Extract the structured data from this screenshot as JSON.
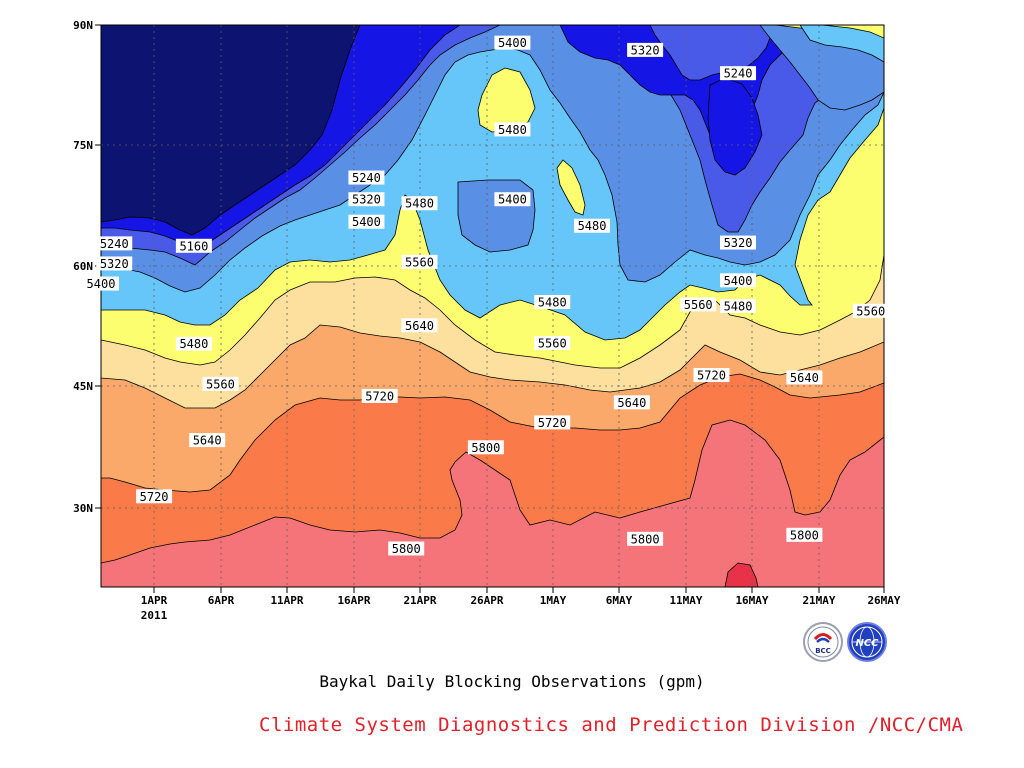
{
  "chart_data": {
    "type": "heatmap",
    "subtype": "filled-contour",
    "title": "Baykal Daily Blocking Observations (gpm)",
    "xlabel": "",
    "ylabel": "",
    "x_tick_labels": [
      "1APR",
      "6APR",
      "11APR",
      "16APR",
      "21APR",
      "26APR",
      "1MAY",
      "6MAY",
      "11MAY",
      "16MAY",
      "21MAY",
      "26MAY"
    ],
    "x_year_label": "2011",
    "x_range": [
      "2011-03-28",
      "2011-05-26"
    ],
    "y_tick_labels": [
      "30N",
      "45N",
      "60N",
      "75N",
      "90N"
    ],
    "y_ticks": [
      30,
      45,
      60,
      75,
      90
    ],
    "y_range": [
      20,
      90
    ],
    "grid": true,
    "levels": [
      5160,
      5240,
      5320,
      5400,
      5480,
      5560,
      5640,
      5720,
      5800,
      5880
    ],
    "band_colors": [
      "#0c1370",
      "#1515e6",
      "#4a5ae8",
      "#5a8fe6",
      "#66c6fa",
      "#fdfd70",
      "#fde09e",
      "#fba96a",
      "#fb7a4a",
      "#f47479",
      "#e83248"
    ],
    "contour_labels": [
      {
        "value": "5240",
        "date": "2011-03-29",
        "lat": 62.8
      },
      {
        "value": "5320",
        "date": "2011-03-29",
        "lat": 60.3
      },
      {
        "value": "5400",
        "date": "2011-03-28",
        "lat": 57.8
      },
      {
        "value": "5160",
        "date": "2011-04-04",
        "lat": 62.5
      },
      {
        "value": "5480",
        "date": "2011-04-04",
        "lat": 50.3
      },
      {
        "value": "5560",
        "date": "2011-04-06",
        "lat": 45.3
      },
      {
        "value": "5640",
        "date": "2011-04-05",
        "lat": 38.3
      },
      {
        "value": "5720",
        "date": "2011-04-01",
        "lat": 31.3
      },
      {
        "value": "5240",
        "date": "2011-04-17",
        "lat": 71.0
      },
      {
        "value": "5320",
        "date": "2011-04-17",
        "lat": 68.3
      },
      {
        "value": "5400",
        "date": "2011-04-17",
        "lat": 65.5
      },
      {
        "value": "5720",
        "date": "2011-04-18",
        "lat": 43.8
      },
      {
        "value": "5800",
        "date": "2011-04-20",
        "lat": 24.8
      },
      {
        "value": "5560",
        "date": "2011-04-21",
        "lat": 60.5
      },
      {
        "value": "5480",
        "date": "2011-04-21",
        "lat": 67.8
      },
      {
        "value": "5640",
        "date": "2011-04-21",
        "lat": 52.6
      },
      {
        "value": "5400",
        "date": "2011-04-28",
        "lat": 87.8
      },
      {
        "value": "5480",
        "date": "2011-04-28",
        "lat": 77.0
      },
      {
        "value": "5400",
        "date": "2011-04-28",
        "lat": 68.3
      },
      {
        "value": "5800",
        "date": "2011-04-26",
        "lat": 37.4
      },
      {
        "value": "5720",
        "date": "2011-05-01",
        "lat": 40.5
      },
      {
        "value": "5480",
        "date": "2011-05-01",
        "lat": 55.5
      },
      {
        "value": "5560",
        "date": "2011-05-01",
        "lat": 50.4
      },
      {
        "value": "5480",
        "date": "2011-05-04",
        "lat": 65.0
      },
      {
        "value": "5320",
        "date": "2011-05-08",
        "lat": 86.9
      },
      {
        "value": "5640",
        "date": "2011-05-07",
        "lat": 43.0
      },
      {
        "value": "5800",
        "date": "2011-05-08",
        "lat": 26.0
      },
      {
        "value": "5240",
        "date": "2011-05-15",
        "lat": 84.0
      },
      {
        "value": "5320",
        "date": "2011-05-15",
        "lat": 62.9
      },
      {
        "value": "5400",
        "date": "2011-05-15",
        "lat": 58.2
      },
      {
        "value": "5480",
        "date": "2011-05-15",
        "lat": 55.0
      },
      {
        "value": "5560",
        "date": "2011-05-12",
        "lat": 55.2
      },
      {
        "value": "5720",
        "date": "2011-05-13",
        "lat": 46.4
      },
      {
        "value": "5640",
        "date": "2011-05-20",
        "lat": 46.1
      },
      {
        "value": "5800",
        "date": "2011-05-20",
        "lat": 26.5
      },
      {
        "value": "5560",
        "date": "2011-05-25",
        "lat": 54.4
      }
    ]
  },
  "footer": {
    "credit": "Climate System Diagnostics and Prediction Division /NCC/CMA"
  },
  "logos": {
    "left": {
      "icon": "bcc-logo",
      "text": "BCC"
    },
    "right": {
      "icon": "ncc-logo",
      "text": "NCC"
    }
  }
}
